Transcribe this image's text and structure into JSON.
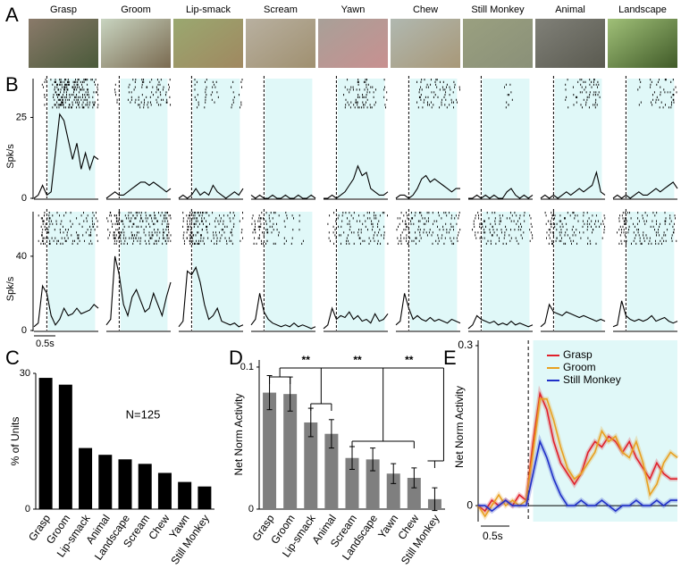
{
  "panel_labels": [
    "A",
    "B",
    "C",
    "D",
    "E"
  ],
  "stimuli": [
    "Grasp",
    "Groom",
    "Lip-smack",
    "Scream",
    "Yawn",
    "Chew",
    "Still Monkey",
    "Animal",
    "Landscape"
  ],
  "chart_data": [
    {
      "type": "psth",
      "ylabel": "Spk/s",
      "ylim": [
        0,
        37
      ],
      "yticks": [
        0,
        25
      ],
      "color": "#000000",
      "shade": "#e0f8f8",
      "series": [
        {
          "values": [
            0,
            1,
            4,
            1,
            2,
            14,
            26,
            24,
            18,
            12,
            17,
            9,
            14,
            9,
            13,
            12
          ]
        },
        {
          "values": [
            0,
            1,
            2,
            1,
            1,
            2,
            3,
            4,
            5,
            5,
            4,
            5,
            4,
            3,
            2,
            3
          ]
        },
        {
          "values": [
            0,
            1,
            0,
            1,
            3,
            1,
            2,
            1,
            4,
            2,
            1,
            0,
            1,
            2,
            1,
            3
          ]
        },
        {
          "values": [
            1,
            0,
            1,
            0,
            0,
            1,
            0,
            0,
            1,
            0,
            0,
            1,
            0,
            0,
            1,
            0
          ]
        },
        {
          "values": [
            0,
            0,
            1,
            0,
            1,
            2,
            4,
            6,
            10,
            7,
            8,
            3,
            2,
            1,
            1,
            2
          ]
        },
        {
          "values": [
            0,
            1,
            1,
            0,
            1,
            3,
            6,
            7,
            5,
            6,
            5,
            4,
            3,
            2,
            3,
            3
          ]
        },
        {
          "values": [
            0,
            0,
            1,
            0,
            1,
            0,
            1,
            0,
            0,
            2,
            3,
            1,
            0,
            1,
            0,
            1
          ]
        },
        {
          "values": [
            0,
            1,
            0,
            1,
            0,
            1,
            2,
            1,
            2,
            3,
            2,
            3,
            4,
            8,
            2,
            1
          ]
        },
        {
          "values": [
            0,
            1,
            0,
            1,
            0,
            1,
            2,
            1,
            1,
            2,
            3,
            2,
            3,
            4,
            5,
            3
          ]
        }
      ]
    },
    {
      "type": "psth",
      "ylabel": "Spk/s",
      "ylim": [
        0,
        64
      ],
      "yticks": [
        0,
        40
      ],
      "color": "#000000",
      "shade": "#e0f8f8",
      "scale_bar": "0.5s",
      "series": [
        {
          "values": [
            2,
            4,
            24,
            20,
            8,
            3,
            6,
            12,
            8,
            9,
            12,
            9,
            10,
            11,
            14,
            12
          ]
        },
        {
          "values": [
            3,
            6,
            40,
            30,
            14,
            8,
            18,
            22,
            16,
            10,
            12,
            20,
            14,
            8,
            18,
            26
          ]
        },
        {
          "values": [
            2,
            5,
            32,
            30,
            34,
            26,
            14,
            6,
            8,
            12,
            5,
            4,
            3,
            4,
            2,
            3
          ]
        },
        {
          "values": [
            3,
            6,
            20,
            10,
            6,
            4,
            3,
            2,
            3,
            2,
            4,
            2,
            3,
            2,
            1,
            2
          ]
        },
        {
          "values": [
            1,
            3,
            12,
            6,
            8,
            7,
            10,
            6,
            8,
            5,
            6,
            4,
            9,
            5,
            6,
            9
          ]
        },
        {
          "values": [
            3,
            5,
            20,
            12,
            6,
            8,
            6,
            5,
            7,
            5,
            6,
            5,
            4,
            6,
            5,
            4
          ]
        },
        {
          "values": [
            1,
            3,
            8,
            6,
            5,
            4,
            5,
            3,
            4,
            3,
            5,
            3,
            4,
            3,
            2,
            3
          ]
        },
        {
          "values": [
            2,
            4,
            14,
            10,
            9,
            8,
            10,
            9,
            8,
            7,
            8,
            7,
            6,
            5,
            6,
            5
          ]
        },
        {
          "values": [
            2,
            3,
            16,
            8,
            6,
            5,
            6,
            5,
            6,
            8,
            5,
            6,
            7,
            5,
            4,
            5
          ]
        }
      ]
    },
    {
      "type": "bar",
      "ylabel": "% of Units",
      "annotation": "N=125",
      "color": "#000000",
      "categories": [
        "Grasp",
        "Groom",
        "Lip-smack",
        "Animal",
        "Landscape",
        "Scream",
        "Chew",
        "Yawn",
        "Still Monkey"
      ],
      "values": [
        29,
        27.5,
        13.5,
        12,
        11,
        10,
        8,
        6,
        5
      ],
      "ylim": [
        0,
        30
      ],
      "yticks": [
        0,
        30
      ]
    },
    {
      "type": "errorbar",
      "ylabel": "Net Norm Activity",
      "color": "#7f7f7f",
      "annotations": [
        "**",
        "**",
        "**"
      ],
      "categories": [
        "Grasp",
        "Groom",
        "Lip-smack",
        "Animal",
        "Scream",
        "Landscape",
        "Yawn",
        "Chew",
        "Still Monkey"
      ],
      "values": [
        0.082,
        0.081,
        0.061,
        0.053,
        0.036,
        0.035,
        0.025,
        0.022,
        0.007
      ],
      "errors": [
        0.012,
        0.012,
        0.01,
        0.01,
        0.008,
        0.008,
        0.007,
        0.007,
        0.008
      ],
      "ylim": [
        0,
        0.105
      ],
      "yticks": [
        0,
        0.1
      ]
    },
    {
      "type": "line",
      "ylabel": "Net Norm Activity",
      "scale_bar": "0.5s",
      "shade": "#e0f8f8",
      "legend": "upper right",
      "ylim": [
        -0.03,
        0.31
      ],
      "yticks": [
        0,
        0.3
      ],
      "series": [
        {
          "name": "Grasp",
          "color": "#e0202a",
          "values": [
            0,
            -0.01,
            0.01,
            0,
            0.01,
            0,
            0.02,
            0.01,
            0.12,
            0.21,
            0.18,
            0.12,
            0.08,
            0.06,
            0.04,
            0.06,
            0.1,
            0.12,
            0.11,
            0.13,
            0.12,
            0.1,
            0.12,
            0.09,
            0.07,
            0.05,
            0.08,
            0.06,
            0.05,
            0.05
          ]
        },
        {
          "name": "Groom",
          "color": "#e8a020",
          "values": [
            0,
            -0.02,
            0,
            0.02,
            0,
            0.01,
            0,
            0.01,
            0.1,
            0.2,
            0.2,
            0.16,
            0.11,
            0.07,
            0.05,
            0.06,
            0.08,
            0.1,
            0.14,
            0.12,
            0.13,
            0.1,
            0.09,
            0.12,
            0.08,
            0.02,
            0.04,
            0.08,
            0.1,
            0.09
          ]
        },
        {
          "name": "Still Monkey",
          "color": "#2030c8",
          "values": [
            0,
            0,
            -0.01,
            0,
            0.01,
            0,
            0,
            0,
            0.06,
            0.12,
            0.09,
            0.05,
            0.02,
            0,
            0,
            0.01,
            0,
            0,
            0.01,
            0,
            -0.01,
            0,
            0,
            0.01,
            0,
            0,
            0.01,
            0,
            0.01,
            0.01
          ]
        }
      ]
    }
  ]
}
